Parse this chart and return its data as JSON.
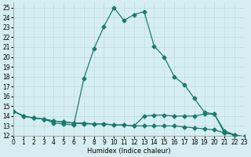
{
  "xlabel": "Humidex (Indice chaleur)",
  "bg_color": "#d6eef2",
  "grid_color": "#b8dce4",
  "line_color": "#1a7a6e",
  "xlim": [
    0,
    23
  ],
  "ylim": [
    12,
    25.5
  ],
  "xticks": [
    0,
    1,
    2,
    3,
    4,
    5,
    6,
    7,
    8,
    9,
    10,
    11,
    12,
    13,
    14,
    15,
    16,
    17,
    18,
    19,
    20,
    21,
    22,
    23
  ],
  "yticks": [
    12,
    13,
    14,
    15,
    16,
    17,
    18,
    19,
    20,
    21,
    22,
    23,
    24,
    25
  ],
  "line1_x": [
    0,
    1,
    2,
    3,
    4,
    5,
    6,
    7,
    8,
    9,
    10,
    11,
    12,
    13,
    14,
    15,
    16,
    17,
    18,
    19,
    20,
    21,
    22,
    23
  ],
  "line1_y": [
    14.5,
    14.0,
    13.8,
    13.7,
    13.3,
    13.2,
    13.1,
    17.8,
    20.8,
    23.1,
    25.0,
    23.7,
    24.3,
    24.6,
    21.1,
    20.0,
    18.0,
    17.2,
    15.8,
    14.4,
    14.2,
    12.5,
    12.1,
    11.9
  ],
  "line2_x": [
    0,
    1,
    2,
    3,
    4,
    5,
    6,
    7,
    8,
    9,
    10,
    11,
    12,
    13,
    14,
    15,
    16,
    17,
    18,
    19,
    20,
    21,
    22,
    23
  ],
  "line2_y": [
    14.5,
    14.0,
    13.8,
    13.7,
    13.5,
    13.4,
    13.3,
    13.3,
    13.2,
    13.2,
    13.1,
    13.1,
    13.0,
    14.0,
    14.1,
    14.1,
    14.0,
    14.0,
    14.0,
    14.2,
    14.2,
    12.3,
    12.1,
    11.9
  ],
  "line3_x": [
    0,
    1,
    2,
    3,
    4,
    5,
    6,
    7,
    8,
    9,
    10,
    11,
    12,
    13,
    14,
    15,
    16,
    17,
    18,
    19,
    20,
    21,
    22,
    23
  ],
  "line3_y": [
    14.5,
    14.0,
    13.8,
    13.7,
    13.5,
    13.4,
    13.3,
    13.2,
    13.2,
    13.2,
    13.1,
    13.1,
    13.0,
    13.0,
    13.0,
    13.0,
    13.0,
    12.9,
    12.8,
    12.7,
    12.6,
    12.3,
    12.1,
    11.9
  ]
}
